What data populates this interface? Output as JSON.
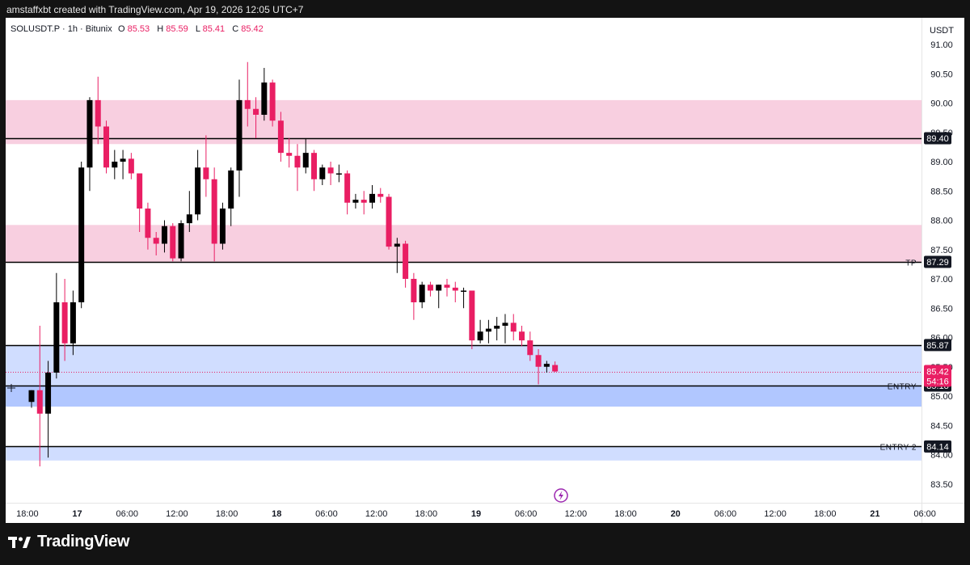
{
  "header": {
    "caption": "amstaffxbt created with TradingView.com, Apr 19, 2026 12:05 UTC+7"
  },
  "legend": {
    "symbol": "SOLUSDT.P · 1h · Bitunix",
    "o_label": "O",
    "o_value": "85.53",
    "h_label": "H",
    "h_value": "85.59",
    "l_label": "L",
    "l_value": "85.41",
    "c_label": "C",
    "c_value": "85.42"
  },
  "footer": {
    "brand": "TradingView"
  },
  "colors": {
    "up": "#000000",
    "down": "#e91e63",
    "supply_zone": "#f8cfe0",
    "demand_zone": "#d0ddff",
    "demand_zone_dark": "#b1c7ff",
    "price_line": "#e91e63"
  },
  "chart_data": {
    "type": "candlestick",
    "symbol": "SOLUSDT.P",
    "interval": "1h",
    "exchange": "Bitunix",
    "currency": "USDT",
    "ylim": [
      83.0,
      91.2
    ],
    "y_ticks": [
      83.5,
      84.0,
      84.5,
      85.0,
      85.5,
      86.0,
      86.5,
      87.0,
      87.5,
      88.0,
      88.5,
      89.0,
      89.5,
      90.0,
      90.5,
      91.0
    ],
    "x_ticks": [
      {
        "i": -0.5,
        "label": "18:00"
      },
      {
        "i": 5.5,
        "label": "17"
      },
      {
        "i": 11.5,
        "label": "06:00"
      },
      {
        "i": 17.5,
        "label": "12:00"
      },
      {
        "i": 23.5,
        "label": "18:00"
      },
      {
        "i": 29.5,
        "label": "18"
      },
      {
        "i": 35.5,
        "label": "06:00"
      },
      {
        "i": 41.5,
        "label": "12:00"
      },
      {
        "i": 47.5,
        "label": "18:00"
      },
      {
        "i": 53.5,
        "label": "19"
      },
      {
        "i": 59.5,
        "label": "06:00"
      },
      {
        "i": 65.5,
        "label": "12:00"
      },
      {
        "i": 71.5,
        "label": "18:00"
      },
      {
        "i": 77.5,
        "label": "20"
      },
      {
        "i": 83.5,
        "label": "06:00"
      },
      {
        "i": 89.5,
        "label": "12:00"
      },
      {
        "i": 95.5,
        "label": "18:00"
      },
      {
        "i": 101.5,
        "label": "21"
      },
      {
        "i": 107.5,
        "label": "06:00"
      }
    ],
    "candles": [
      {
        "o": 84.9,
        "h": 85.1,
        "l": 84.8,
        "c": 85.1
      },
      {
        "o": 85.1,
        "h": 86.2,
        "l": 83.8,
        "c": 84.7
      },
      {
        "o": 84.7,
        "h": 85.6,
        "l": 83.95,
        "c": 85.4
      },
      {
        "o": 85.4,
        "h": 87.1,
        "l": 85.3,
        "c": 86.6
      },
      {
        "o": 86.6,
        "h": 87.0,
        "l": 85.6,
        "c": 85.9
      },
      {
        "o": 85.9,
        "h": 86.8,
        "l": 85.7,
        "c": 86.6
      },
      {
        "o": 86.6,
        "h": 89.0,
        "l": 86.5,
        "c": 88.9
      },
      {
        "o": 88.9,
        "h": 90.1,
        "l": 88.5,
        "c": 90.05
      },
      {
        "o": 90.05,
        "h": 90.45,
        "l": 89.3,
        "c": 89.6
      },
      {
        "o": 89.6,
        "h": 89.7,
        "l": 88.8,
        "c": 88.9
      },
      {
        "o": 88.9,
        "h": 89.2,
        "l": 88.7,
        "c": 89.0
      },
      {
        "o": 89.0,
        "h": 89.2,
        "l": 88.7,
        "c": 89.05
      },
      {
        "o": 89.05,
        "h": 89.15,
        "l": 88.7,
        "c": 88.8
      },
      {
        "o": 88.8,
        "h": 88.8,
        "l": 87.8,
        "c": 88.2
      },
      {
        "o": 88.2,
        "h": 88.3,
        "l": 87.5,
        "c": 87.7
      },
      {
        "o": 87.7,
        "h": 87.8,
        "l": 87.4,
        "c": 87.6
      },
      {
        "o": 87.6,
        "h": 88.0,
        "l": 87.45,
        "c": 87.9
      },
      {
        "o": 87.9,
        "h": 87.95,
        "l": 87.3,
        "c": 87.35
      },
      {
        "o": 87.35,
        "h": 88.0,
        "l": 87.3,
        "c": 87.95
      },
      {
        "o": 87.95,
        "h": 88.5,
        "l": 87.8,
        "c": 88.1
      },
      {
        "o": 88.1,
        "h": 89.2,
        "l": 88.0,
        "c": 88.9
      },
      {
        "o": 88.9,
        "h": 89.45,
        "l": 88.4,
        "c": 88.7
      },
      {
        "o": 88.7,
        "h": 88.9,
        "l": 87.3,
        "c": 87.6
      },
      {
        "o": 87.6,
        "h": 88.3,
        "l": 87.5,
        "c": 88.2
      },
      {
        "o": 88.2,
        "h": 88.9,
        "l": 87.9,
        "c": 88.85
      },
      {
        "o": 88.85,
        "h": 90.4,
        "l": 88.4,
        "c": 90.05
      },
      {
        "o": 90.05,
        "h": 90.7,
        "l": 89.6,
        "c": 89.9
      },
      {
        "o": 89.9,
        "h": 90.1,
        "l": 89.4,
        "c": 89.8
      },
      {
        "o": 89.8,
        "h": 90.6,
        "l": 89.7,
        "c": 90.35
      },
      {
        "o": 90.35,
        "h": 90.4,
        "l": 89.6,
        "c": 89.7
      },
      {
        "o": 89.7,
        "h": 89.85,
        "l": 89.0,
        "c": 89.15
      },
      {
        "o": 89.15,
        "h": 89.4,
        "l": 88.9,
        "c": 89.1
      },
      {
        "o": 89.1,
        "h": 89.3,
        "l": 88.5,
        "c": 88.9
      },
      {
        "o": 88.9,
        "h": 89.4,
        "l": 88.8,
        "c": 89.15
      },
      {
        "o": 89.15,
        "h": 89.2,
        "l": 88.5,
        "c": 88.7
      },
      {
        "o": 88.7,
        "h": 88.95,
        "l": 88.6,
        "c": 88.9
      },
      {
        "o": 88.9,
        "h": 89.0,
        "l": 88.6,
        "c": 88.8
      },
      {
        "o": 88.8,
        "h": 88.95,
        "l": 88.65,
        "c": 88.8
      },
      {
        "o": 88.8,
        "h": 88.85,
        "l": 88.1,
        "c": 88.3
      },
      {
        "o": 88.3,
        "h": 88.45,
        "l": 88.2,
        "c": 88.35
      },
      {
        "o": 88.35,
        "h": 88.5,
        "l": 88.1,
        "c": 88.3
      },
      {
        "o": 88.3,
        "h": 88.6,
        "l": 88.2,
        "c": 88.45
      },
      {
        "o": 88.45,
        "h": 88.55,
        "l": 88.3,
        "c": 88.4
      },
      {
        "o": 88.4,
        "h": 88.45,
        "l": 87.5,
        "c": 87.55
      },
      {
        "o": 87.55,
        "h": 87.7,
        "l": 87.1,
        "c": 87.6
      },
      {
        "o": 87.6,
        "h": 87.65,
        "l": 86.85,
        "c": 87.0
      },
      {
        "o": 87.0,
        "h": 87.1,
        "l": 86.3,
        "c": 86.6
      },
      {
        "o": 86.6,
        "h": 86.95,
        "l": 86.5,
        "c": 86.9
      },
      {
        "o": 86.9,
        "h": 86.95,
        "l": 86.7,
        "c": 86.8
      },
      {
        "o": 86.8,
        "h": 86.9,
        "l": 86.5,
        "c": 86.9
      },
      {
        "o": 86.9,
        "h": 87.0,
        "l": 86.7,
        "c": 86.85
      },
      {
        "o": 86.85,
        "h": 86.95,
        "l": 86.6,
        "c": 86.8
      },
      {
        "o": 86.8,
        "h": 86.85,
        "l": 86.5,
        "c": 86.8
      },
      {
        "o": 86.8,
        "h": 86.8,
        "l": 85.8,
        "c": 85.95
      },
      {
        "o": 85.95,
        "h": 86.3,
        "l": 85.9,
        "c": 86.1
      },
      {
        "o": 86.1,
        "h": 86.3,
        "l": 85.9,
        "c": 86.15
      },
      {
        "o": 86.15,
        "h": 86.35,
        "l": 85.95,
        "c": 86.2
      },
      {
        "o": 86.2,
        "h": 86.4,
        "l": 85.9,
        "c": 86.25
      },
      {
        "o": 86.25,
        "h": 86.4,
        "l": 85.95,
        "c": 86.1
      },
      {
        "o": 86.1,
        "h": 86.2,
        "l": 85.85,
        "c": 85.95
      },
      {
        "o": 85.95,
        "h": 86.1,
        "l": 85.6,
        "c": 85.7
      },
      {
        "o": 85.7,
        "h": 85.8,
        "l": 85.2,
        "c": 85.5
      },
      {
        "o": 85.5,
        "h": 85.6,
        "l": 85.4,
        "c": 85.55
      },
      {
        "o": 85.53,
        "h": 85.59,
        "l": 85.41,
        "c": 85.42
      }
    ],
    "lines": [
      {
        "price": 89.4,
        "label": "",
        "badge": "89.40"
      },
      {
        "price": 87.29,
        "label": "TP",
        "badge": "87.29"
      },
      {
        "price": 85.87,
        "label": "",
        "badge": "85.87"
      },
      {
        "price": 85.18,
        "label": "ENTRY",
        "badge": "85.18"
      },
      {
        "price": 84.14,
        "label": "ENTRY 2",
        "badge": "84.14"
      }
    ],
    "zones": [
      {
        "top": 90.05,
        "bottom": 89.4,
        "kind": "supply"
      },
      {
        "top": 89.4,
        "bottom": 89.3,
        "kind": "supply"
      },
      {
        "top": 87.92,
        "bottom": 87.29,
        "kind": "supply"
      },
      {
        "top": 85.87,
        "bottom": 85.18,
        "kind": "demand"
      },
      {
        "top": 85.18,
        "bottom": 84.82,
        "kind": "demand_dark"
      },
      {
        "top": 84.14,
        "bottom": 83.9,
        "kind": "demand"
      }
    ],
    "last_price": {
      "value": "85.42",
      "countdown": "54:16"
    }
  }
}
